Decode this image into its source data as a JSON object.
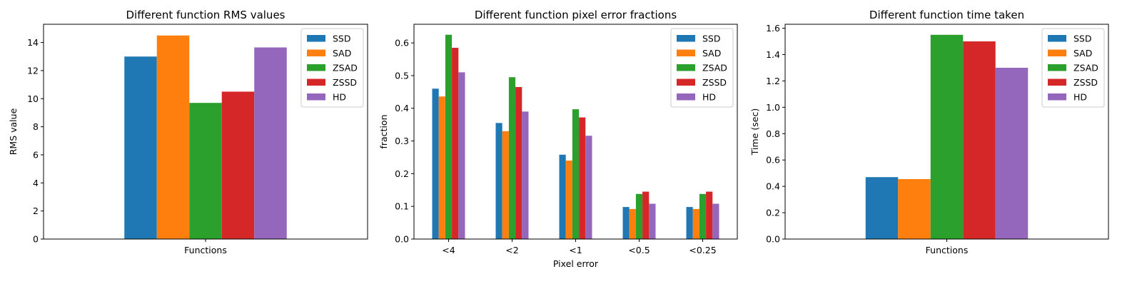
{
  "chart_data": [
    {
      "type": "bar",
      "title": "Different function RMS values",
      "xlabel": "",
      "ylabel": "RMS value",
      "categories": [
        "Functions"
      ],
      "series": [
        {
          "name": "SSD",
          "values": [
            13.0
          ],
          "color": "#1f77b4"
        },
        {
          "name": "SAD",
          "values": [
            14.5
          ],
          "color": "#ff7f0e"
        },
        {
          "name": "ZSAD",
          "values": [
            9.7
          ],
          "color": "#2ca02c"
        },
        {
          "name": "ZSSD",
          "values": [
            10.5
          ],
          "color": "#d62728"
        },
        {
          "name": "HD",
          "values": [
            13.65
          ],
          "color": "#9467bd"
        }
      ],
      "ylim": [
        0,
        15.3
      ],
      "yticks": [
        0,
        2,
        4,
        6,
        8,
        10,
        12,
        14
      ],
      "legend": "top-right",
      "grid": false
    },
    {
      "type": "bar",
      "title": "Different function pixel error fractions",
      "xlabel": "Pixel error",
      "ylabel": "fraction",
      "categories": [
        "<4",
        "<2",
        "<1",
        "<0.5",
        "<0.25"
      ],
      "series": [
        {
          "name": "SSD",
          "values": [
            0.46,
            0.355,
            0.258,
            0.098,
            0.098
          ],
          "color": "#1f77b4"
        },
        {
          "name": "SAD",
          "values": [
            0.436,
            0.33,
            0.24,
            0.092,
            0.092
          ],
          "color": "#ff7f0e"
        },
        {
          "name": "ZSAD",
          "values": [
            0.625,
            0.495,
            0.397,
            0.138,
            0.138
          ],
          "color": "#2ca02c"
        },
        {
          "name": "ZSSD",
          "values": [
            0.585,
            0.465,
            0.372,
            0.145,
            0.145
          ],
          "color": "#d62728"
        },
        {
          "name": "HD",
          "values": [
            0.51,
            0.39,
            0.316,
            0.108,
            0.108
          ],
          "color": "#9467bd"
        }
      ],
      "ylim": [
        0,
        0.657
      ],
      "yticks": [
        0.0,
        0.1,
        0.2,
        0.3,
        0.4,
        0.5,
        0.6
      ],
      "legend": "top-right",
      "grid": false
    },
    {
      "type": "bar",
      "title": "Different function time taken",
      "xlabel": "",
      "ylabel": "Time (sec)",
      "categories": [
        "Functions"
      ],
      "series": [
        {
          "name": "SSD",
          "values": [
            0.47
          ],
          "color": "#1f77b4"
        },
        {
          "name": "SAD",
          "values": [
            0.455
          ],
          "color": "#ff7f0e"
        },
        {
          "name": "ZSAD",
          "values": [
            1.55
          ],
          "color": "#2ca02c"
        },
        {
          "name": "ZSSD",
          "values": [
            1.5
          ],
          "color": "#d62728"
        },
        {
          "name": "HD",
          "values": [
            1.3
          ],
          "color": "#9467bd"
        }
      ],
      "ylim": [
        0,
        1.63
      ],
      "yticks": [
        0.0,
        0.2,
        0.4,
        0.6,
        0.8,
        1.0,
        1.2,
        1.4,
        1.6
      ],
      "legend": "top-right",
      "grid": false
    }
  ]
}
